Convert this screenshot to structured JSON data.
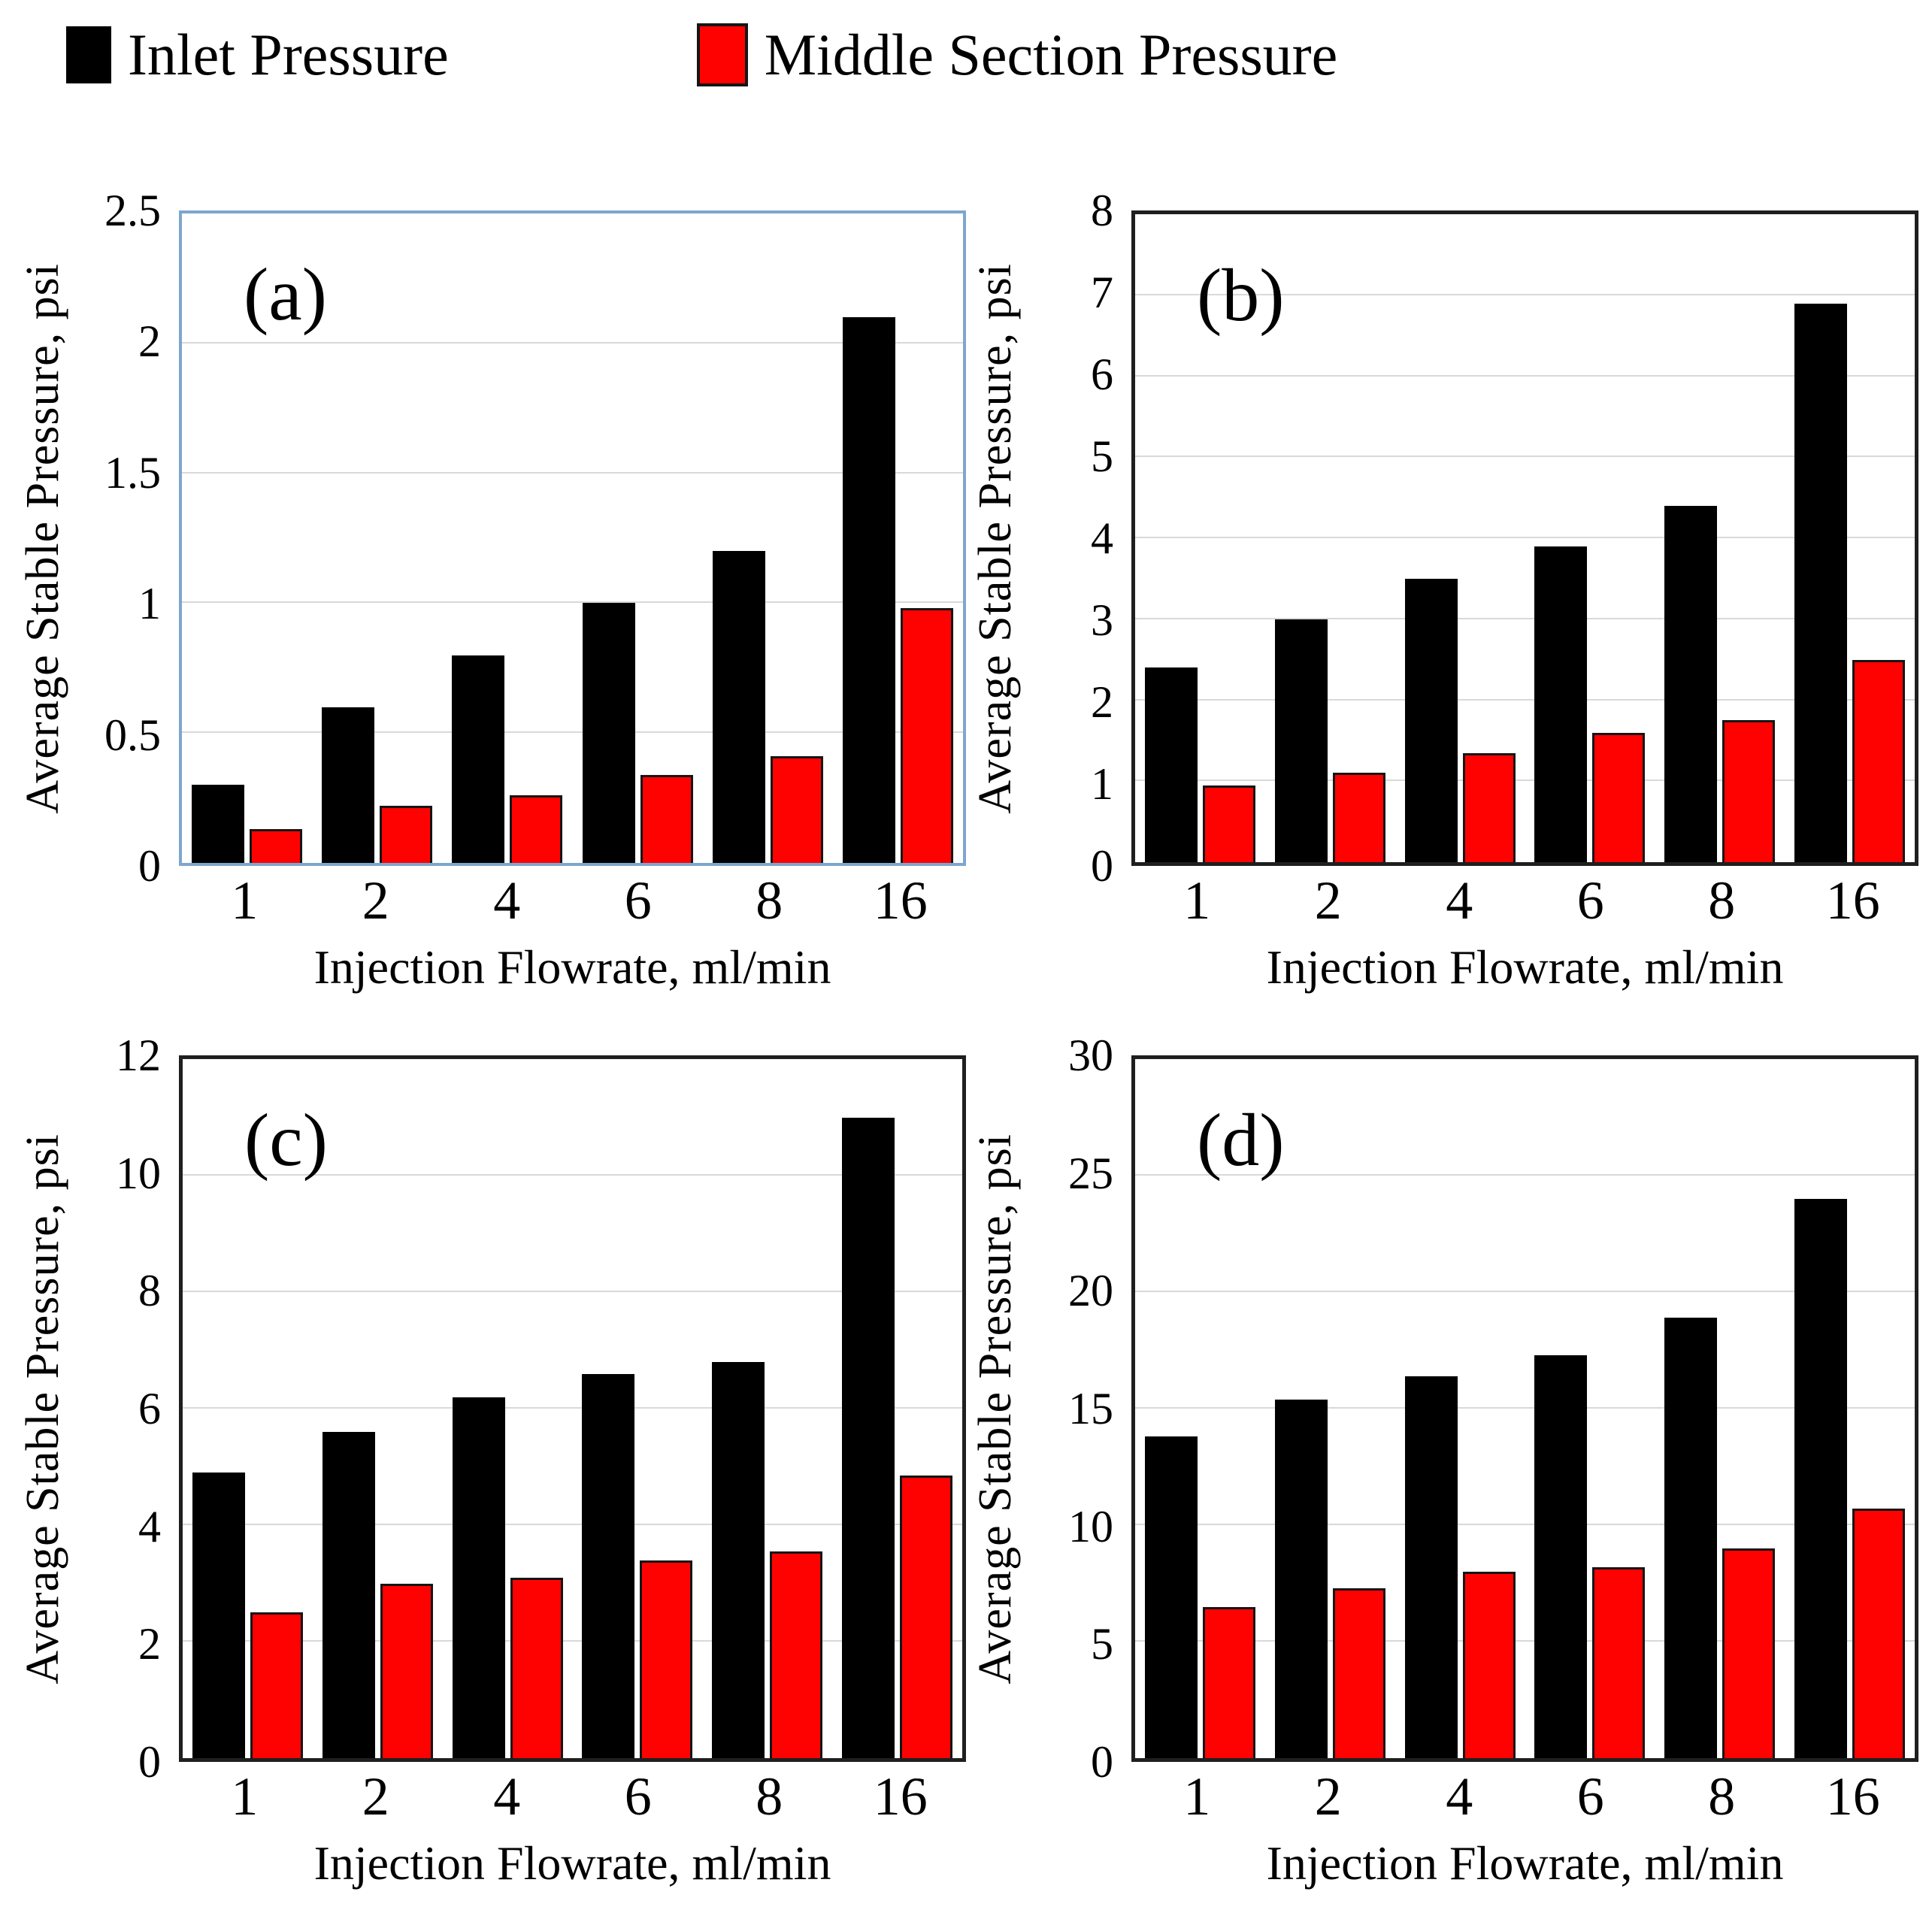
{
  "legend": {
    "items": [
      {
        "label": "Inlet Pressure",
        "color": "#000000"
      },
      {
        "label": "Middle Section Pressure",
        "color": "#FE0202"
      }
    ]
  },
  "colors": {
    "inlet": "#000000",
    "middle": "#FE0202",
    "gridline": "#D9D9D9",
    "frame_a": "#7EA6CF",
    "frame_bcd": "#1F1F1F"
  },
  "chart_data": [
    {
      "type": "bar",
      "panel_label": "(a)",
      "xlabel": "Injection Flowrate, ml/min",
      "ylabel": "Average Stable Pressure, psi",
      "categories": [
        "1",
        "2",
        "4",
        "6",
        "8",
        "16"
      ],
      "series": [
        {
          "name": "Inlet Pressure",
          "values": [
            0.3,
            0.6,
            0.8,
            1.0,
            1.2,
            2.1
          ]
        },
        {
          "name": "Middle Section Pressure",
          "values": [
            0.13,
            0.22,
            0.26,
            0.34,
            0.41,
            0.98
          ]
        }
      ],
      "ylim": [
        0,
        2.5
      ],
      "ytick_values": [
        0,
        0.5,
        1,
        1.5,
        2,
        2.5
      ],
      "ytick_labels": [
        "0",
        "0.5",
        "1",
        "1.5",
        "2",
        "2.5"
      ],
      "grid": true,
      "frame": "blue",
      "legend_position": "top"
    },
    {
      "type": "bar",
      "panel_label": "(b)",
      "xlabel": "Injection Flowrate, ml/min",
      "ylabel": "Average Stable Pressure, psi",
      "categories": [
        "1",
        "2",
        "4",
        "6",
        "8",
        "16"
      ],
      "series": [
        {
          "name": "Inlet Pressure",
          "values": [
            2.4,
            3.0,
            3.5,
            3.9,
            4.4,
            6.9
          ]
        },
        {
          "name": "Middle Section Pressure",
          "values": [
            0.95,
            1.1,
            1.35,
            1.6,
            1.75,
            2.5
          ]
        }
      ],
      "ylim": [
        0,
        8
      ],
      "ytick_values": [
        0,
        1,
        2,
        3,
        4,
        5,
        6,
        7,
        8
      ],
      "ytick_labels": [
        "0",
        "1",
        "2",
        "3",
        "4",
        "5",
        "6",
        "7",
        "8"
      ],
      "grid": true,
      "frame": "dark",
      "legend_position": "top"
    },
    {
      "type": "bar",
      "panel_label": "(c)",
      "xlabel": "Injection Flowrate, ml/min",
      "ylabel": "Average Stable Pressure, psi",
      "categories": [
        "1",
        "2",
        "4",
        "6",
        "8",
        "16"
      ],
      "series": [
        {
          "name": "Inlet Pressure",
          "values": [
            4.9,
            5.6,
            6.2,
            6.6,
            6.8,
            11.0
          ]
        },
        {
          "name": "Middle Section Pressure",
          "values": [
            2.5,
            3.0,
            3.1,
            3.4,
            3.55,
            4.85
          ]
        }
      ],
      "ylim": [
        0,
        12
      ],
      "ytick_values": [
        0,
        2,
        4,
        6,
        8,
        10,
        12
      ],
      "ytick_labels": [
        "0",
        "2",
        "4",
        "6",
        "8",
        "10",
        "12"
      ],
      "grid": true,
      "frame": "dark",
      "legend_position": "top"
    },
    {
      "type": "bar",
      "panel_label": "(d)",
      "xlabel": "Injection Flowrate, ml/min",
      "ylabel": "Average Stable Pressure, psi",
      "categories": [
        "1",
        "2",
        "4",
        "6",
        "8",
        "16"
      ],
      "series": [
        {
          "name": "Inlet Pressure",
          "values": [
            13.8,
            15.4,
            16.4,
            17.3,
            18.9,
            24.0
          ]
        },
        {
          "name": "Middle Section Pressure",
          "values": [
            6.5,
            7.3,
            8.0,
            8.2,
            9.0,
            10.7
          ]
        }
      ],
      "ylim": [
        0,
        30
      ],
      "ytick_values": [
        0,
        5,
        10,
        15,
        20,
        25,
        30
      ],
      "ytick_labels": [
        "0",
        "5",
        "10",
        "15",
        "20",
        "25",
        "30"
      ],
      "grid": true,
      "frame": "dark",
      "legend_position": "top"
    }
  ]
}
